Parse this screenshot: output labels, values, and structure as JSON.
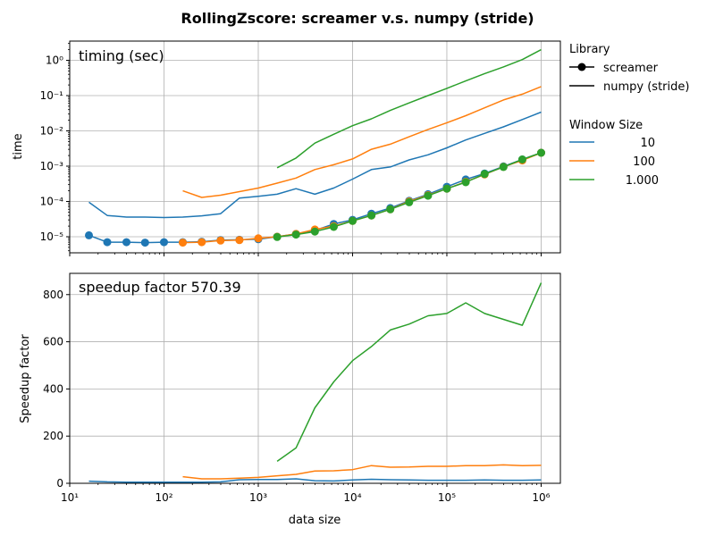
{
  "figure": {
    "title": "RollingZscore:  screamer v.s. numpy (stride)"
  },
  "colors": {
    "w10": "#1f77b4",
    "w100": "#ff7f0e",
    "w1000": "#2ca02c",
    "grid": "#b0b0b0"
  },
  "legend": {
    "library_title": "Library",
    "library_items": [
      "screamer",
      "numpy (stride)"
    ],
    "window_title": "Window Size",
    "window_items": [
      "10",
      "100",
      "1.000"
    ]
  },
  "chart_data": [
    {
      "type": "line",
      "annotation": "timing (sec)",
      "xlabel": "",
      "ylabel": "time",
      "xscale": "log",
      "yscale": "log",
      "xlim": [
        10,
        1600000
      ],
      "ylim": [
        3.5e-06,
        3.5
      ],
      "xticks": [
        10,
        100,
        1000,
        10000,
        100000,
        1000000
      ],
      "yticks": [
        1e-05,
        0.0001,
        0.001,
        0.01,
        0.1,
        1
      ],
      "ytick_labels": [
        "10⁻⁵",
        "10⁻⁴",
        "10⁻³",
        "10⁻²",
        "10⁻¹",
        "10⁰"
      ],
      "grid": true,
      "series": [
        {
          "name": "screamer",
          "window": "10",
          "library": "screamer",
          "color_key": "w10",
          "marker": true,
          "x": [
            16,
            25,
            40,
            63,
            100,
            158,
            251,
            398,
            631,
            1000,
            1585,
            2512,
            3981,
            6310,
            10000,
            15849,
            25119,
            39811,
            63096,
            100000,
            158489,
            251189,
            398107,
            630957,
            1000000
          ],
          "y": [
            1.1e-05,
            7e-06,
            7e-06,
            6.8e-06,
            7e-06,
            7e-06,
            7.2e-06,
            8e-06,
            8.2e-06,
            8.5e-06,
            1e-05,
            1.2e-05,
            1.5e-05,
            2.3e-05,
            3e-05,
            4.5e-05,
            6.5e-05,
            0.000105,
            0.00016,
            0.00026,
            0.00042,
            0.00062,
            0.00098,
            0.00155,
            0.0024
          ]
        },
        {
          "name": "numpy (stride)",
          "window": "10",
          "library": "numpy (stride)",
          "color_key": "w10",
          "marker": false,
          "x": [
            16,
            25,
            40,
            63,
            100,
            158,
            251,
            398,
            631,
            1000,
            1585,
            2512,
            3981,
            6310,
            10000,
            15849,
            25119,
            39811,
            63096,
            100000,
            158489,
            251189,
            398107,
            630957,
            1000000
          ],
          "y": [
            9.5e-05,
            4e-05,
            3.6e-05,
            3.6e-05,
            3.5e-05,
            3.6e-05,
            3.9e-05,
            4.5e-05,
            0.000125,
            0.00014,
            0.00016,
            0.00023,
            0.00016,
            0.00024,
            0.00043,
            0.0008,
            0.00095,
            0.0015,
            0.0021,
            0.0033,
            0.0055,
            0.0085,
            0.013,
            0.021,
            0.034
          ]
        },
        {
          "name": "screamer",
          "window": "100",
          "library": "screamer",
          "color_key": "w100",
          "marker": true,
          "x": [
            158,
            251,
            398,
            631,
            1000,
            1585,
            2512,
            3981,
            6310,
            10000,
            15849,
            25119,
            39811,
            63096,
            100000,
            158489,
            251189,
            398107,
            630957,
            1000000
          ],
          "y": [
            6.8e-06,
            7e-06,
            7.8e-06,
            8e-06,
            9e-06,
            1e-05,
            1.2e-05,
            1.6e-05,
            2e-05,
            2.8e-05,
            4e-05,
            6e-05,
            0.0001,
            0.00015,
            0.00023,
            0.00036,
            0.00058,
            0.00096,
            0.00145,
            0.0024
          ]
        },
        {
          "name": "numpy (stride)",
          "window": "100",
          "library": "numpy (stride)",
          "color_key": "w100",
          "marker": false,
          "x": [
            158,
            251,
            398,
            631,
            1000,
            1585,
            2512,
            3981,
            6310,
            10000,
            15849,
            25119,
            39811,
            63096,
            100000,
            158489,
            251189,
            398107,
            630957,
            1000000
          ],
          "y": [
            0.0002,
            0.00013,
            0.00015,
            0.00019,
            0.00024,
            0.00033,
            0.00046,
            0.0008,
            0.0011,
            0.0016,
            0.003,
            0.0042,
            0.0068,
            0.011,
            0.017,
            0.027,
            0.045,
            0.075,
            0.11,
            0.18
          ]
        },
        {
          "name": "screamer",
          "window": "1.000",
          "library": "screamer",
          "color_key": "w1000",
          "marker": true,
          "x": [
            1585,
            2512,
            3981,
            6310,
            10000,
            15849,
            25119,
            39811,
            63096,
            100000,
            158489,
            251189,
            398107,
            630957,
            1000000
          ],
          "y": [
            9.8e-06,
            1.15e-05,
            1.4e-05,
            1.9e-05,
            2.8e-05,
            4e-05,
            6e-05,
            9.5e-05,
            0.000145,
            0.00023,
            0.00035,
            0.0006,
            0.00095,
            0.00155,
            0.0024
          ]
        },
        {
          "name": "numpy (stride)",
          "window": "1.000",
          "library": "numpy (stride)",
          "color_key": "w1000",
          "marker": false,
          "x": [
            1585,
            2512,
            3981,
            6310,
            10000,
            15849,
            25119,
            39811,
            63096,
            100000,
            158489,
            251189,
            398107,
            630957,
            1000000
          ],
          "y": [
            0.0009,
            0.0017,
            0.0045,
            0.008,
            0.014,
            0.022,
            0.038,
            0.062,
            0.1,
            0.16,
            0.26,
            0.42,
            0.65,
            1.05,
            2.0
          ]
        }
      ]
    },
    {
      "type": "line",
      "annotation": "speedup factor  570.39",
      "xlabel": "data size",
      "ylabel": "Speedup factor",
      "xscale": "log",
      "yscale": "linear",
      "xlim": [
        10,
        1600000
      ],
      "ylim": [
        0,
        890
      ],
      "xticks": [
        10,
        100,
        1000,
        10000,
        100000,
        1000000
      ],
      "xtick_labels": [
        "10¹",
        "10²",
        "10³",
        "10⁴",
        "10⁵",
        "10⁶"
      ],
      "yticks": [
        0,
        200,
        400,
        600,
        800
      ],
      "ytick_labels": [
        "0",
        "200",
        "400",
        "600",
        "800"
      ],
      "grid": true,
      "series": [
        {
          "window": "10",
          "color_key": "w10",
          "x": [
            16,
            25,
            40,
            63,
            100,
            158,
            251,
            398,
            631,
            1000,
            1585,
            2512,
            3981,
            6310,
            10000,
            15849,
            25119,
            39811,
            63096,
            100000,
            158489,
            251189,
            398107,
            630957,
            1000000
          ],
          "y": [
            9,
            6,
            5,
            5,
            5,
            5,
            5,
            6,
            15,
            16,
            16,
            19,
            11,
            10,
            14,
            17,
            15,
            14,
            13,
            13,
            13,
            14,
            13,
            13,
            14
          ]
        },
        {
          "window": "100",
          "color_key": "w100",
          "x": [
            158,
            251,
            398,
            631,
            1000,
            1585,
            2512,
            3981,
            6310,
            10000,
            15849,
            25119,
            39811,
            63096,
            100000,
            158489,
            251189,
            398107,
            630957,
            1000000
          ],
          "y": [
            28,
            19,
            19,
            22,
            25,
            32,
            38,
            52,
            53,
            58,
            75,
            68,
            69,
            72,
            72,
            75,
            75,
            78,
            75,
            76
          ]
        },
        {
          "window": "1.000",
          "color_key": "w1000",
          "x": [
            1585,
            2512,
            3981,
            6310,
            10000,
            15849,
            25119,
            39811,
            63096,
            100000,
            158489,
            251189,
            398107,
            630957,
            1000000
          ],
          "y": [
            93,
            150,
            320,
            430,
            520,
            580,
            650,
            675,
            710,
            720,
            765,
            720,
            695,
            670,
            850
          ]
        }
      ]
    }
  ]
}
